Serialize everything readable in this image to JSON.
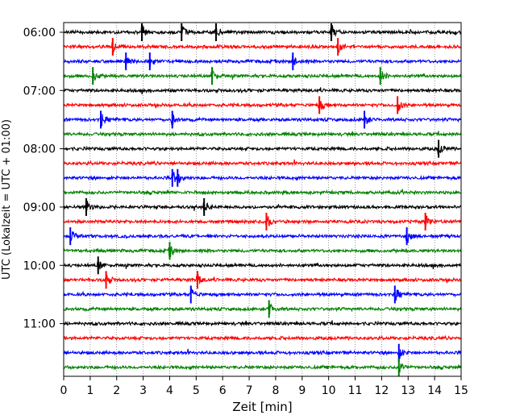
{
  "chart_data": {
    "type": "line",
    "title": "",
    "xlabel": "Zeit  [min]",
    "ylabel": "UTC (Lokalzeit = UTC + 01:00)",
    "xlim": [
      0,
      15
    ],
    "x_ticks": [
      "0",
      "1",
      "2",
      "3",
      "4",
      "5",
      "6",
      "7",
      "8",
      "9",
      "10",
      "11",
      "12",
      "13",
      "14",
      "15"
    ],
    "y_ticks": [
      "06:00",
      "07:00",
      "08:00",
      "09:00",
      "10:00",
      "11:00"
    ],
    "grid": "vertical dotted",
    "row_interval_min": 15,
    "color_cycle": [
      "#000000",
      "#ff0000",
      "#0000ff",
      "#008000"
    ],
    "rows": [
      {
        "start": "06:00",
        "color": "#000000",
        "events": [
          2.95,
          10.1,
          5.75,
          4.45
        ]
      },
      {
        "start": "06:15",
        "color": "#ff0000",
        "events": [
          1.85,
          10.35
        ]
      },
      {
        "start": "06:30",
        "color": "#0000ff",
        "events": [
          3.25,
          8.65,
          2.35
        ]
      },
      {
        "start": "06:45",
        "color": "#008000",
        "events": [
          1.1,
          5.6,
          11.95
        ]
      },
      {
        "start": "07:00",
        "color": "#000000",
        "events": []
      },
      {
        "start": "07:15",
        "color": "#ff0000",
        "events": [
          9.65,
          12.6
        ]
      },
      {
        "start": "07:30",
        "color": "#0000ff",
        "events": [
          1.4,
          11.35,
          4.1
        ]
      },
      {
        "start": "07:45",
        "color": "#008000",
        "events": []
      },
      {
        "start": "08:00",
        "color": "#000000",
        "events": [
          14.15
        ]
      },
      {
        "start": "08:15",
        "color": "#ff0000",
        "events": []
      },
      {
        "start": "08:30",
        "color": "#0000ff",
        "events": [
          4.1,
          4.3
        ]
      },
      {
        "start": "08:45",
        "color": "#008000",
        "events": []
      },
      {
        "start": "09:00",
        "color": "#000000",
        "events": [
          0.85,
          5.3
        ]
      },
      {
        "start": "09:15",
        "color": "#ff0000",
        "events": [
          7.65,
          13.65
        ]
      },
      {
        "start": "09:30",
        "color": "#0000ff",
        "events": [
          12.95,
          0.25
        ]
      },
      {
        "start": "09:45",
        "color": "#008000",
        "events": [
          4.0
        ]
      },
      {
        "start": "10:00",
        "color": "#000000",
        "events": [
          1.3
        ]
      },
      {
        "start": "10:15",
        "color": "#ff0000",
        "events": [
          5.05,
          1.6
        ]
      },
      {
        "start": "10:30",
        "color": "#0000ff",
        "events": [
          4.8,
          12.5
        ]
      },
      {
        "start": "10:45",
        "color": "#008000",
        "events": [
          7.75
        ]
      },
      {
        "start": "11:00",
        "color": "#000000",
        "events": []
      },
      {
        "start": "11:15",
        "color": "#ff0000",
        "events": []
      },
      {
        "start": "11:30",
        "color": "#0000ff",
        "events": [
          12.65
        ]
      },
      {
        "start": "11:45",
        "color": "#008000",
        "events": [
          12.65
        ]
      }
    ]
  }
}
